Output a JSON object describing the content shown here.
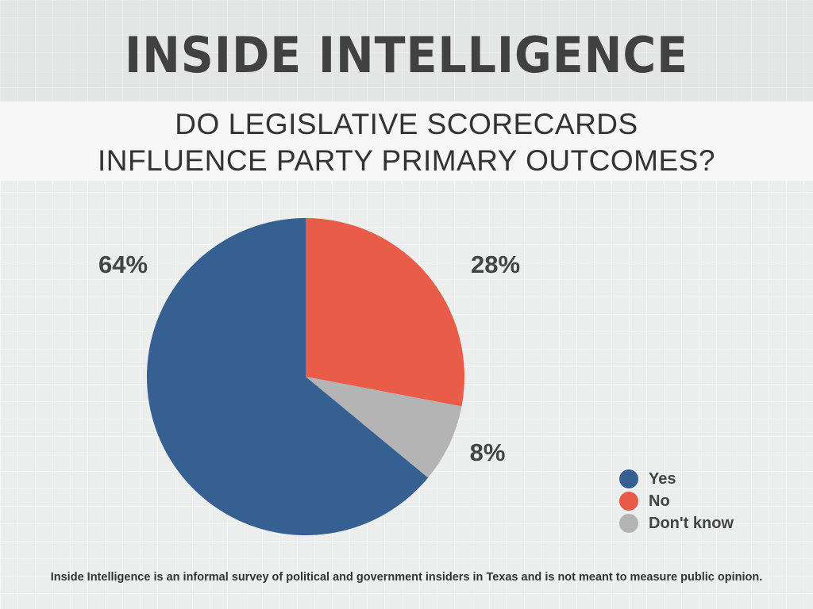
{
  "header": {
    "title": "INSIDE INTELLIGENCE"
  },
  "question": {
    "line1": "DO LEGISLATIVE SCORECARDS",
    "line2": "INFLUENCE PARTY PRIMARY OUTCOMES?"
  },
  "chart_data": {
    "type": "pie",
    "title": "DO LEGISLATIVE SCORECARDS INFLUENCE PARTY PRIMARY OUTCOMES?",
    "slices": [
      {
        "name": "No",
        "value": 28,
        "label": "28%",
        "color": "#e85c48"
      },
      {
        "name": "Don't know",
        "value": 8,
        "label": "8%",
        "color": "#b4b4b4"
      },
      {
        "name": "Yes",
        "value": 64,
        "label": "64%",
        "color": "#365f92"
      }
    ],
    "legend": [
      "Yes",
      "No",
      "Don't know"
    ],
    "legend_placement": "bottom-right"
  },
  "legend": {
    "items": [
      {
        "label": "Yes",
        "color": "#365f92"
      },
      {
        "label": "No",
        "color": "#e85c48"
      },
      {
        "label": "Don't know",
        "color": "#b4b4b4"
      }
    ]
  },
  "footnote": "Inside Intelligence is an informal survey of political and government insiders in Texas and is not meant to measure public opinion."
}
